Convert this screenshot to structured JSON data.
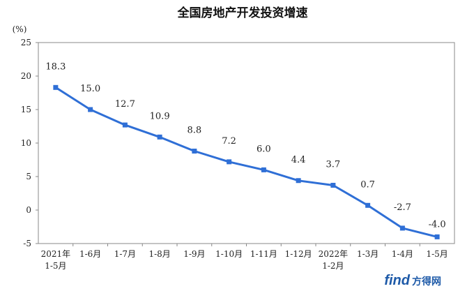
{
  "chart_data": {
    "type": "line",
    "title": "全国房地产开发投资增速",
    "unit": "(%)",
    "categories": [
      [
        "2021年",
        "1-5月"
      ],
      [
        "1-6月"
      ],
      [
        "1-7月"
      ],
      [
        "1-8月"
      ],
      [
        "1-9月"
      ],
      [
        "1-10月"
      ],
      [
        "1-11月"
      ],
      [
        "1-12月"
      ],
      [
        "2022年",
        "1-2月"
      ],
      [
        "1-3月"
      ],
      [
        "1-4月"
      ],
      [
        "1-5月"
      ]
    ],
    "series": [
      {
        "values": [
          18.3,
          15.0,
          12.7,
          10.9,
          8.8,
          7.2,
          6.0,
          4.4,
          3.7,
          0.7,
          -2.7,
          -4.0
        ]
      }
    ],
    "data_labels": [
      "18.3",
      "15.0",
      "12.7",
      "10.9",
      "8.8",
      "7.2",
      "6.0",
      "4.4",
      "3.7",
      "0.7",
      "-2.7",
      "-4.0"
    ],
    "yticks": [
      25,
      20,
      15,
      10,
      5,
      0,
      -5
    ],
    "ylim": [
      -5,
      25
    ],
    "grid": false,
    "line_color": "#2f6fd6"
  },
  "watermark": {
    "text_a": "find",
    "text_b": "方得网"
  }
}
